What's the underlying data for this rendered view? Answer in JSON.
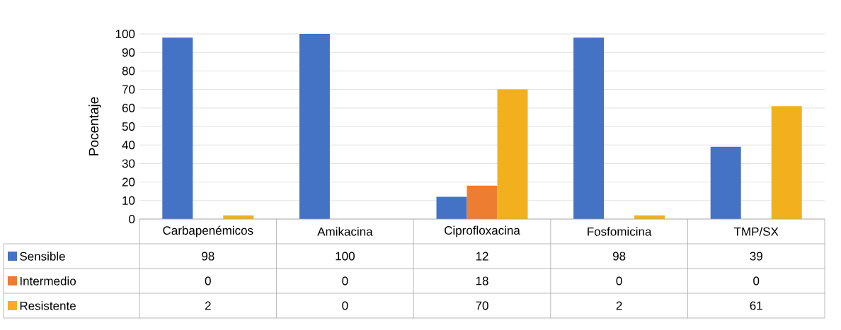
{
  "chart_data": {
    "type": "bar",
    "ylabel": "Pocentaje",
    "categories": [
      "Carbapenémicos",
      "Amikacina",
      "Ciprofloxacina",
      "Fosfomicina",
      "TMP/SX"
    ],
    "series": [
      {
        "name": "Sensible",
        "color": "#4472c4",
        "values": [
          98,
          100,
          12,
          98,
          39
        ]
      },
      {
        "name": "Intermedio",
        "color": "#ed7d31",
        "values": [
          0,
          0,
          18,
          0,
          0
        ]
      },
      {
        "name": "Resistente",
        "color": "#f2b01e",
        "values": [
          2,
          0,
          70,
          2,
          61
        ]
      }
    ],
    "ylim": [
      0,
      100
    ],
    "yticks": [
      0,
      10,
      20,
      30,
      40,
      50,
      60,
      70,
      80,
      90,
      100
    ],
    "grid": "y",
    "legend": "bottom",
    "data_labels": true
  }
}
